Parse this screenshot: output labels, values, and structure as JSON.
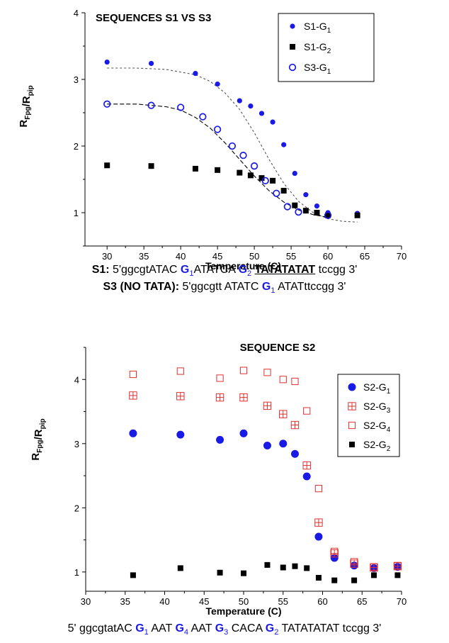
{
  "chart_data": [
    {
      "type": "scatter",
      "title": "SEQUENCES S1 VS S3",
      "xlabel": "Temperature (C)",
      "ylabel_main": "R",
      "ylabel_sub1": "Fpg",
      "ylabel_mid": "/R",
      "ylabel_sub2": "pip",
      "xlim": [
        27,
        70
      ],
      "ylim": [
        0.5,
        4
      ],
      "xticks": [
        "30",
        "35",
        "40",
        "45",
        "50",
        "55",
        "60",
        "65",
        "70"
      ],
      "yticks": [
        "1",
        "2",
        "3",
        "4"
      ],
      "legend_position": "top-right",
      "series": [
        {
          "name": "S1-G",
          "sub": "1",
          "marker": "circle-filled",
          "color": "#1a1ae6",
          "x": [
            30,
            36,
            42,
            45,
            48,
            49.5,
            51,
            52.5,
            54,
            55.5,
            57,
            58.5,
            60,
            64
          ],
          "y": [
            3.26,
            3.24,
            3.09,
            2.93,
            2.68,
            2.6,
            2.49,
            2.36,
            2.02,
            1.59,
            1.27,
            1.1,
            1.0,
            0.99
          ]
        },
        {
          "name": "S1-G",
          "sub": "2",
          "marker": "square-filled",
          "color": "#000000",
          "x": [
            30,
            36,
            42,
            45,
            48,
            49.5,
            51,
            52.5,
            54,
            55.5,
            57,
            58.5,
            60,
            64
          ],
          "y": [
            1.71,
            1.7,
            1.66,
            1.64,
            1.6,
            1.56,
            1.52,
            1.48,
            1.33,
            1.11,
            1.03,
            1.0,
            0.96,
            0.96
          ]
        },
        {
          "name": "S3-G",
          "sub": "1",
          "marker": "circle-open",
          "color": "#1a1ae6",
          "x": [
            30,
            36,
            40,
            43,
            45,
            47,
            48.5,
            50,
            51.5,
            53,
            54.5,
            56,
            60
          ],
          "y": [
            2.63,
            2.61,
            2.58,
            2.44,
            2.25,
            2.0,
            1.86,
            1.7,
            1.48,
            1.29,
            1.09,
            1.01,
            0.96
          ]
        }
      ],
      "fits": [
        {
          "style": "dotted",
          "color": "#555555",
          "x": [
            30,
            34,
            38,
            42,
            44,
            46,
            48,
            50,
            52,
            54,
            56,
            58,
            60,
            62,
            64
          ],
          "y": [
            3.17,
            3.17,
            3.15,
            3.07,
            2.97,
            2.8,
            2.55,
            2.2,
            1.8,
            1.44,
            1.17,
            1.0,
            0.91,
            0.87,
            0.86
          ]
        },
        {
          "style": "dashed",
          "color": "#000000",
          "x": [
            30,
            34,
            38,
            40,
            42,
            44,
            46,
            48,
            50,
            52,
            54,
            56,
            58,
            60
          ],
          "y": [
            2.63,
            2.63,
            2.59,
            2.54,
            2.43,
            2.27,
            2.05,
            1.8,
            1.55,
            1.33,
            1.16,
            1.04,
            0.97,
            0.93
          ]
        }
      ]
    },
    {
      "type": "scatter",
      "title": "SEQUENCE S2",
      "xlabel": "Temperature (C)",
      "ylabel_main": "R",
      "ylabel_sub1": "Fpg",
      "ylabel_mid": "/R",
      "ylabel_sub2": "pip",
      "xlim": [
        30,
        70
      ],
      "ylim": [
        0.7,
        4.5
      ],
      "xticks": [
        "30",
        "35",
        "40",
        "45",
        "50",
        "55",
        "60",
        "65",
        "70"
      ],
      "yticks": [
        "1",
        "2",
        "3",
        "4"
      ],
      "legend_position": "top-right",
      "series": [
        {
          "name": "S2-G",
          "sub": "1",
          "marker": "circle-filled-large",
          "color": "#1a1ae6",
          "x": [
            36,
            42,
            47,
            50,
            53,
            55,
            56.5,
            58,
            59.5,
            61.5,
            64,
            66.5,
            69.5
          ],
          "y": [
            3.16,
            3.14,
            3.06,
            3.16,
            2.97,
            3.0,
            2.84,
            2.49,
            1.55,
            1.22,
            1.1,
            1.06,
            1.08
          ]
        },
        {
          "name": "S2-G",
          "sub": "3",
          "marker": "square-crossed",
          "color": "#e03030",
          "x": [
            36,
            42,
            47,
            50,
            53,
            55,
            56.5,
            58,
            59.5,
            61.5,
            64,
            66.5,
            69.5
          ],
          "y": [
            3.75,
            3.74,
            3.72,
            3.72,
            3.59,
            3.46,
            3.29,
            2.66,
            1.77,
            1.29,
            1.13,
            1.07,
            1.09
          ]
        },
        {
          "name": "S2-G",
          "sub": "4",
          "marker": "square-open",
          "color": "#e03030",
          "x": [
            36,
            42,
            47,
            50,
            53,
            55,
            56.5,
            58,
            59.5,
            61.5,
            64,
            66.5,
            69.5
          ],
          "y": [
            4.08,
            4.13,
            4.02,
            4.14,
            4.11,
            4.0,
            3.97,
            3.51,
            2.3,
            1.32,
            1.16,
            1.08,
            1.1
          ]
        },
        {
          "name": "S2-G",
          "sub": "2",
          "marker": "square-filled",
          "color": "#000000",
          "x": [
            36,
            42,
            47,
            50,
            53,
            55,
            56.5,
            58,
            59.5,
            61.5,
            64,
            66.5,
            69.5
          ],
          "y": [
            0.95,
            1.06,
            0.99,
            0.98,
            1.11,
            1.07,
            1.09,
            1.06,
            0.91,
            0.87,
            0.87,
            0.95,
            0.95
          ]
        }
      ]
    }
  ],
  "sequences": {
    "s1": {
      "label": "S1:",
      "p1": " 5'ggcgtATAC ",
      "g1": "G",
      "g1_sub": "1",
      "p2": "ATATCA ",
      "g2": "G",
      "g2_sub": "2",
      "p3": " ",
      "tata": "TATATATAT",
      "p4": " tccgg 3'"
    },
    "s3": {
      "label": "S3 (NO TATA):",
      "p1": " 5'ggcgtt ATATC ",
      "g1": "G",
      "g1_sub": "1",
      "p2": " ATATttccgg 3'"
    },
    "s2": {
      "p1": "5' ggcgtatAC ",
      "g1": "G",
      "g1_sub": "1",
      "p2": " AAT ",
      "g4": "G",
      "g4_sub": "4",
      "p3": " AAT ",
      "g3": "G",
      "g3_sub": "3",
      "p4": " CACA ",
      "g2": "G",
      "g2_sub": "2",
      "p5": " TATATATAT tccgg 3'"
    }
  }
}
